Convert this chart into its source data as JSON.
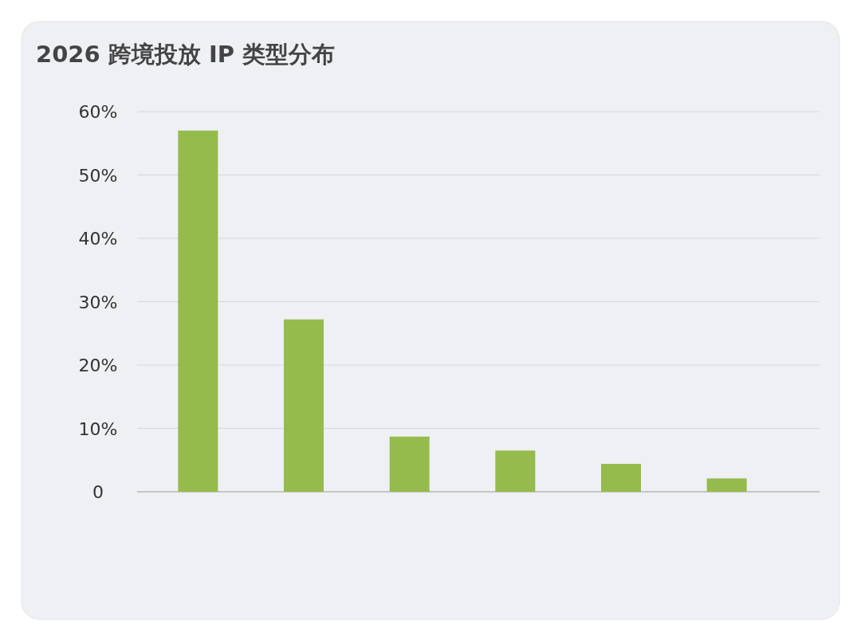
{
  "chart_data": {
    "type": "bar",
    "title": "2026 跨境投放 IP 类型分布",
    "categories": [
      null,
      null,
      null,
      null,
      null,
      null
    ],
    "values": [
      57,
      27.2,
      8.7,
      6.5,
      4.4,
      2.1
    ],
    "color": "#94bb4c",
    "ylim": [
      0,
      60
    ],
    "yticks": [
      0,
      {
        "value": 10,
        "label": "10%"
      },
      {
        "value": 20,
        "label": "20%"
      },
      {
        "value": 30,
        "label": "30%"
      },
      {
        "value": 40,
        "label": "40%"
      },
      {
        "value": 50,
        "label": "50%"
      },
      {
        "value": 60,
        "label": "60%"
      }
    ],
    "grid": "y"
  }
}
